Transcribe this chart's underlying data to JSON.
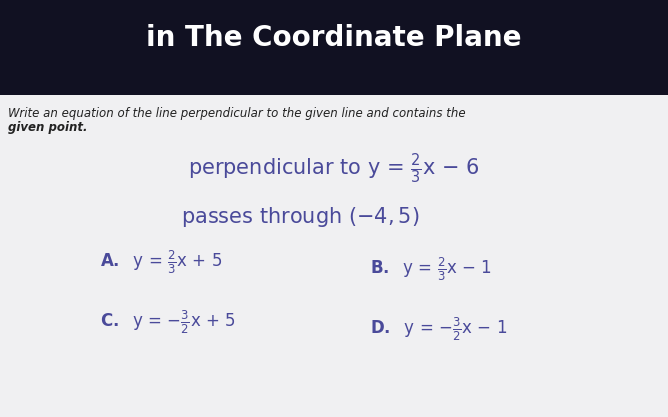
{
  "bg_color": "#dcdce0",
  "header_bg": "#111122",
  "header_text_color": "#ffffff",
  "header_fontsize": 20,
  "instruction_line1": "Write an equation of the line perpendicular to the given line and contains the",
  "instruction_line2": "given point.",
  "instruction_fontsize": 8.5,
  "instruction_color": "#222222",
  "main_color": "#4a4a9a",
  "main_fontsize": 15,
  "choice_color": "#4a4a9a",
  "choice_label_fontsize": 12,
  "choice_eq_fontsize": 11
}
